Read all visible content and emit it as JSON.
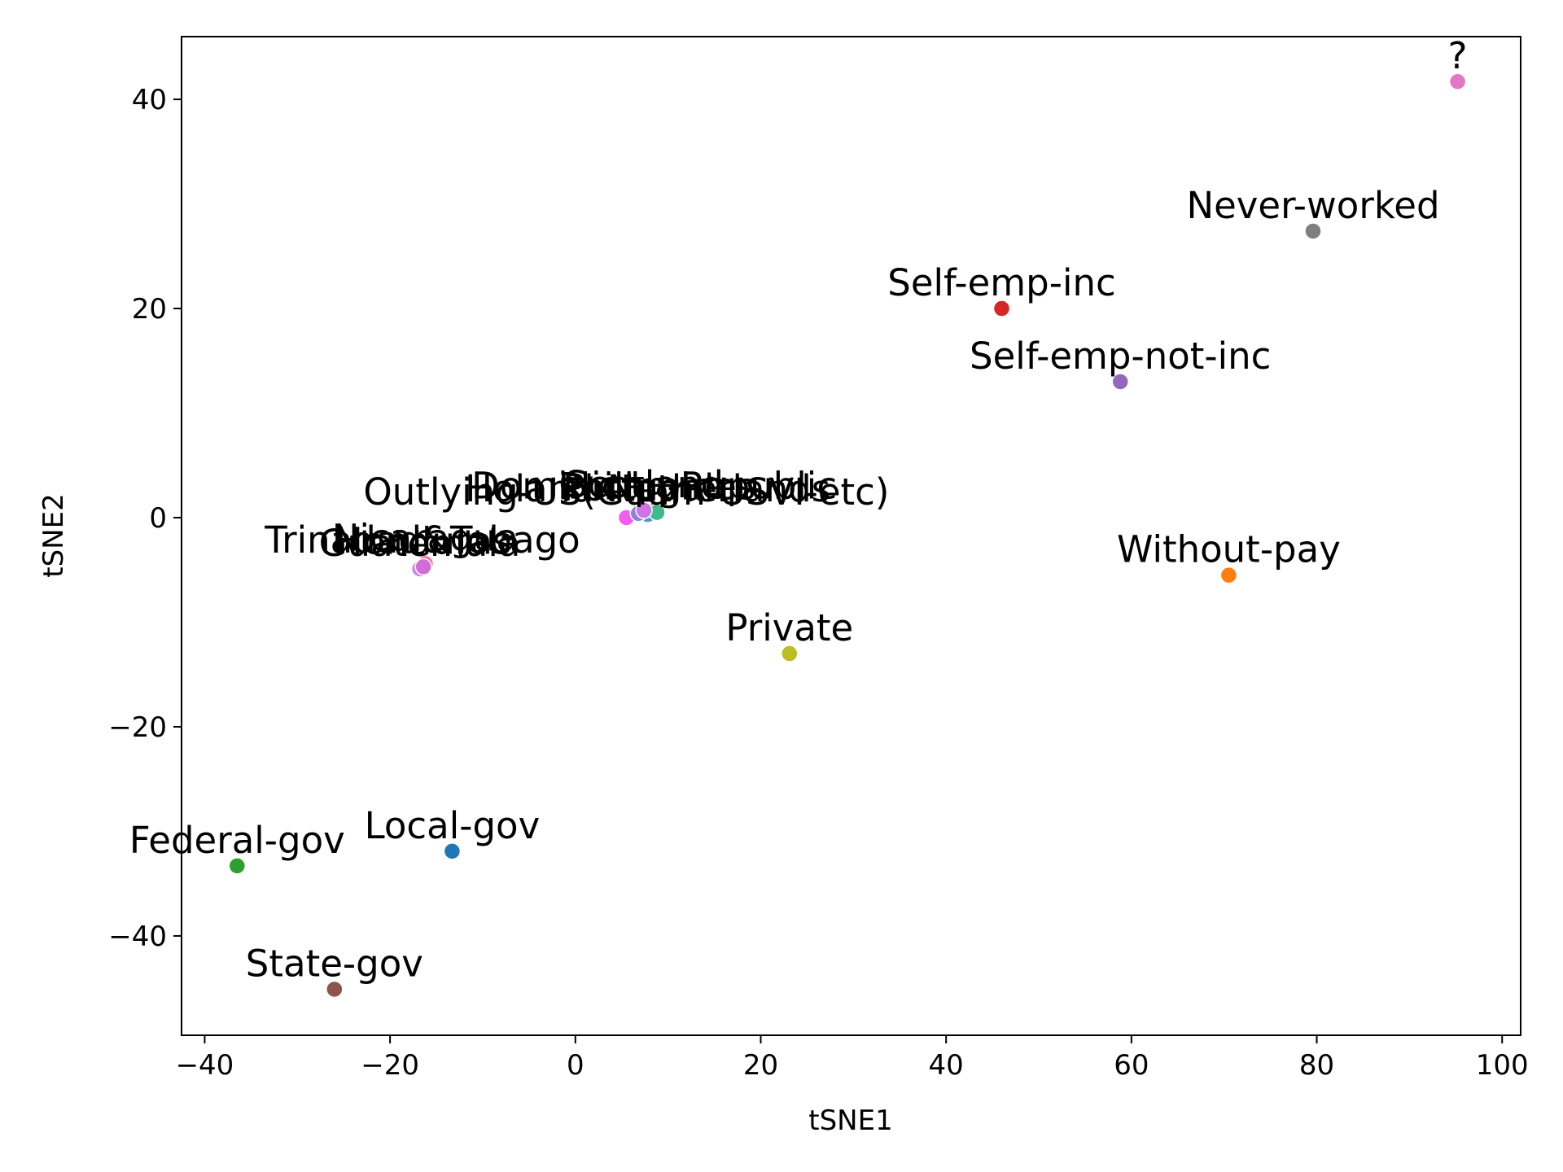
{
  "chart_data": {
    "type": "scatter",
    "title": "",
    "xlabel": "tSNE1",
    "ylabel": "tSNE2",
    "xlim": [
      -42.5,
      102
    ],
    "ylim": [
      -49.5,
      46
    ],
    "xticks": [
      -40,
      -20,
      0,
      20,
      40,
      60,
      80,
      100
    ],
    "yticks": [
      -40,
      -20,
      0,
      20,
      40
    ],
    "xtick_labels": [
      "−40",
      "−20",
      "0",
      "20",
      "40",
      "60",
      "80",
      "100"
    ],
    "ytick_labels": [
      "−40",
      "−20",
      "0",
      "20",
      "40"
    ],
    "grid": false,
    "legend": false,
    "points": [
      {
        "label": "?",
        "x": 95.2,
        "y": 41.7,
        "color": "#e377c2"
      },
      {
        "label": "Never-worked",
        "x": 79.6,
        "y": 27.4,
        "color": "#7f7f7f"
      },
      {
        "label": "Self-emp-inc",
        "x": 46.0,
        "y": 20.0,
        "color": "#d62728"
      },
      {
        "label": "Self-emp-not-inc",
        "x": 58.8,
        "y": 13.0,
        "color": "#9467bd"
      },
      {
        "label": "Without-pay",
        "x": 70.5,
        "y": -5.5,
        "color": "#ff7f0e"
      },
      {
        "label": "Private",
        "x": 23.1,
        "y": -13.0,
        "color": "#bcbd22"
      },
      {
        "label": "Local-gov",
        "x": -13.3,
        "y": -31.9,
        "color": "#1f77b4"
      },
      {
        "label": "Federal-gov",
        "x": -36.5,
        "y": -33.3,
        "color": "#2ca02c"
      },
      {
        "label": "State-gov",
        "x": -26.0,
        "y": -45.1,
        "color": "#8c564b"
      },
      {
        "label": "Outlying-US(Guam-USVI-etc)",
        "x": 5.5,
        "y": 0.0,
        "color": "#f15df1"
      },
      {
        "label": "Dominican-Republic",
        "x": 8.5,
        "y": 0.6,
        "color": "#e84e8a"
      },
      {
        "label": "Holand-Netherlands",
        "x": 7.8,
        "y": 0.3,
        "color": "#4f9bd9"
      },
      {
        "label": "Philippines",
        "x": 8.8,
        "y": 0.5,
        "color": "#3dbb8a"
      },
      {
        "label": "Portugal",
        "x": 6.8,
        "y": 0.4,
        "color": "#8f7fe0"
      },
      {
        "label": "Scotland",
        "x": 7.4,
        "y": 0.7,
        "color": "#cf72e5"
      },
      {
        "label": "Trinadad&Tobago",
        "x": -16.5,
        "y": -4.6,
        "color": "#a56be0"
      },
      {
        "label": "Guatemala",
        "x": -16.8,
        "y": -4.9,
        "color": "#c48ae8"
      },
      {
        "label": "Nicaragua",
        "x": -16.2,
        "y": -4.4,
        "color": "#f26e9e"
      },
      {
        "label": "Honduras",
        "x": -16.4,
        "y": -4.7,
        "color": "#d46cd8"
      }
    ]
  }
}
